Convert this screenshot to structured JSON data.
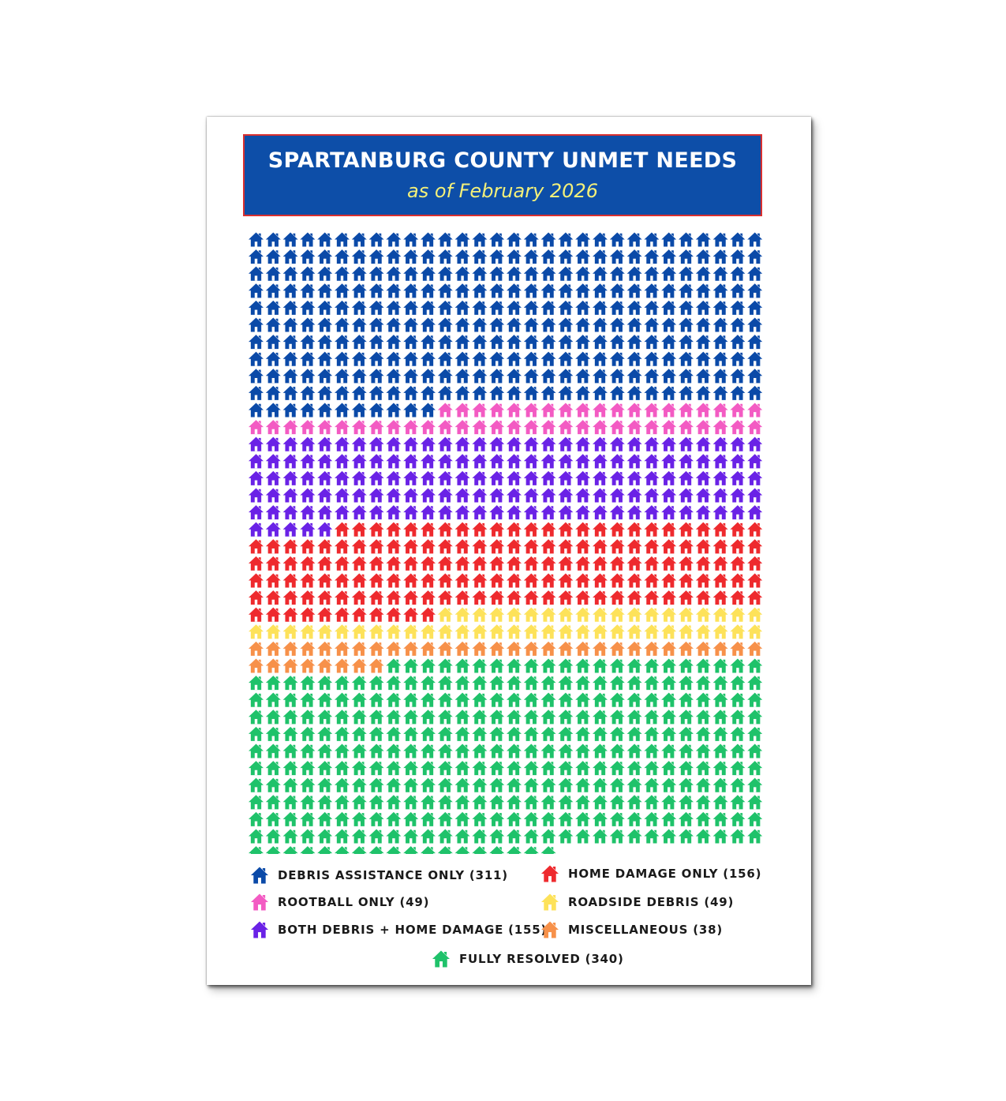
{
  "chart_data": {
    "type": "waffle",
    "title": "SPARTANBURG COUNTY UNMET NEEDS",
    "subtitle": "as of February 2026",
    "columns": 30,
    "icon": "house-icon",
    "order_note": "row-major",
    "categories": [
      {
        "key": "debris",
        "label": "DEBRIS ASSISTANCE ONLY (311)",
        "count": 311,
        "color": "#0b4aa8"
      },
      {
        "key": "rootball",
        "label": "ROOTBALL ONLY (49)",
        "count": 49,
        "color": "#f35bc3"
      },
      {
        "key": "both",
        "label": "BOTH DEBRIS + HOME DAMAGE (155)",
        "count": 155,
        "color": "#6a22e6"
      },
      {
        "key": "home",
        "label": "HOME DAMAGE ONLY (156)",
        "count": 156,
        "color": "#ee2a2e"
      },
      {
        "key": "roadside",
        "label": "ROADSIDE DEBRIS (49)",
        "count": 49,
        "color": "#fde25a"
      },
      {
        "key": "misc",
        "label": "MISCELLANEOUS (38)",
        "count": 38,
        "color": "#f7914a"
      },
      {
        "key": "resolved",
        "label": "FULLY RESOLVED (340)",
        "count": 340,
        "color": "#1fc26a"
      }
    ]
  }
}
